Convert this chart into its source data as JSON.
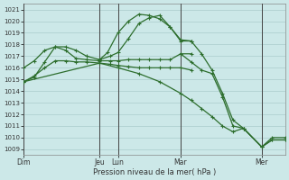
{
  "xlabel": "Pression niveau de la mer( hPa )",
  "bg_color": "#cce8e8",
  "grid_color": "#aacccc",
  "line_color": "#2d6e2d",
  "ylim": [
    1008.5,
    1021.5
  ],
  "yticks": [
    1009,
    1010,
    1011,
    1012,
    1013,
    1014,
    1015,
    1016,
    1017,
    1018,
    1019,
    1020,
    1021
  ],
  "day_labels": [
    "Dim",
    "Jeu",
    "Lun",
    "Mar",
    "Mer"
  ],
  "day_positions": [
    0.0,
    0.29,
    0.36,
    0.6,
    0.91
  ],
  "xlim": [
    0.0,
    1.0
  ],
  "lines": [
    {
      "x": [
        0.0,
        0.04,
        0.08,
        0.12,
        0.16,
        0.2,
        0.24,
        0.29,
        0.32,
        0.36,
        0.4,
        0.44,
        0.48,
        0.52,
        0.56,
        0.6,
        0.64
      ],
      "y": [
        1014.8,
        1015.2,
        1016.5,
        1017.8,
        1017.8,
        1017.5,
        1017.0,
        1016.7,
        1017.3,
        1019.0,
        1020.0,
        1020.6,
        1020.5,
        1020.2,
        1019.5,
        1018.4,
        1018.3
      ]
    },
    {
      "x": [
        0.0,
        0.04,
        0.08,
        0.12,
        0.16,
        0.2,
        0.24,
        0.29,
        0.33,
        0.36,
        0.4,
        0.44,
        0.48,
        0.52,
        0.56,
        0.6,
        0.64
      ],
      "y": [
        1016.0,
        1016.6,
        1017.5,
        1017.8,
        1017.5,
        1016.8,
        1016.7,
        1016.6,
        1016.6,
        1016.6,
        1016.7,
        1016.7,
        1016.7,
        1016.7,
        1016.7,
        1017.2,
        1017.2
      ]
    },
    {
      "x": [
        0.0,
        0.04,
        0.08,
        0.12,
        0.16,
        0.2,
        0.24,
        0.29,
        0.33,
        0.36,
        0.4,
        0.44,
        0.48,
        0.52,
        0.56,
        0.6,
        0.64
      ],
      "y": [
        1014.8,
        1015.3,
        1016.0,
        1016.6,
        1016.6,
        1016.5,
        1016.5,
        1016.4,
        1016.3,
        1016.2,
        1016.1,
        1016.0,
        1016.0,
        1016.0,
        1016.0,
        1016.0,
        1015.8
      ]
    },
    {
      "x": [
        0.0,
        0.29,
        0.36,
        0.44,
        0.52,
        0.6,
        0.64,
        0.68,
        0.72,
        0.76,
        0.8,
        0.84,
        0.91,
        0.95,
        1.0
      ],
      "y": [
        1014.8,
        1016.4,
        1016.0,
        1015.5,
        1014.8,
        1013.8,
        1013.2,
        1012.5,
        1011.8,
        1011.0,
        1010.5,
        1010.8,
        1009.2,
        1009.8,
        1009.8
      ]
    },
    {
      "x": [
        0.29,
        0.33,
        0.36,
        0.4,
        0.44,
        0.48,
        0.52,
        0.56,
        0.6,
        0.64,
        0.68,
        0.72,
        0.76,
        0.8,
        0.84,
        0.91,
        0.95,
        1.0
      ],
      "y": [
        1016.7,
        1017.0,
        1017.3,
        1018.5,
        1019.8,
        1020.3,
        1020.5,
        1019.5,
        1018.3,
        1018.3,
        1017.2,
        1015.8,
        1013.8,
        1011.5,
        1010.8,
        1009.2,
        1010.0,
        1010.0
      ]
    },
    {
      "x": [
        0.6,
        0.64,
        0.68,
        0.72,
        0.76,
        0.8,
        0.84,
        0.91,
        0.95,
        1.0
      ],
      "y": [
        1017.2,
        1016.5,
        1015.8,
        1015.5,
        1013.5,
        1011.0,
        1010.8,
        1009.2,
        1009.8,
        1009.8
      ]
    }
  ]
}
